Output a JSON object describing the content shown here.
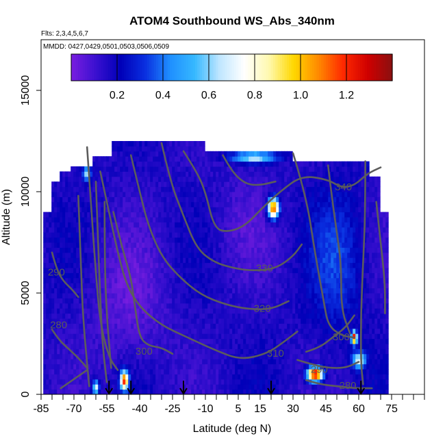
{
  "chart_data": {
    "type": "heatmap",
    "title": "ATOM4 Southbound WS_Abs_340nm",
    "flights_note": "Flts: 2,3,4,5,6,7",
    "dates_note": "MMDD: 0427,0429,0501,0503,0506,0509",
    "xlabel": "Latitude (deg N)",
    "ylabel": "Altitude (m)",
    "xlim": [
      -85,
      90
    ],
    "ylim": [
      0,
      17500
    ],
    "x_ticks": [
      -85,
      -70,
      -55,
      -40,
      -25,
      -10,
      5,
      15,
      30,
      45,
      60,
      75
    ],
    "x_minor_ticks": [
      -80,
      -75,
      -65,
      -60,
      -50,
      -45,
      -35,
      -30,
      -20,
      -15,
      -5,
      0,
      10,
      20,
      25,
      35,
      40,
      50,
      55,
      65,
      70,
      80,
      85,
      90
    ],
    "y_ticks": [
      0,
      5000,
      10000,
      15000
    ],
    "colorbar": {
      "range": [
        0,
        1.4
      ],
      "ticks": [
        0.2,
        0.4,
        0.6,
        0.8,
        1.0,
        1.2
      ],
      "tick_labels": [
        "0.2",
        "0.4",
        "0.6",
        "0.8",
        "1.0",
        "1.2"
      ],
      "colors": [
        "#7a1ee0",
        "#3a10d0",
        "#0000b8",
        "#0a2fe0",
        "#1f8fff",
        "#36b8ff",
        "#bfe6ff",
        "#ffffff",
        "#fff9b0",
        "#ffd800",
        "#ff8a00",
        "#ff2a00",
        "#d00000",
        "#8a1010"
      ]
    },
    "contour_labels": [
      {
        "text": "340",
        "x": 53,
        "y": 10200
      },
      {
        "text": "330",
        "x": 17,
        "y": 6200
      },
      {
        "text": "320",
        "x": 16,
        "y": 4200
      },
      {
        "text": "310",
        "x": 22,
        "y": 2000
      },
      {
        "text": "300",
        "x": -38,
        "y": 2100
      },
      {
        "text": "300",
        "x": 52,
        "y": 2800
      },
      {
        "text": "290",
        "x": -78,
        "y": 6000
      },
      {
        "text": "290",
        "x": 42,
        "y": 1200
      },
      {
        "text": "280",
        "x": -77,
        "y": 3400
      },
      {
        "text": "280",
        "x": 55,
        "y": 400
      }
    ],
    "profile_markers_lat": [
      -54,
      -44,
      -20,
      20,
      61
    ],
    "series": [
      {
        "name": "",
        "lat_range": [
          -84,
          74
        ],
        "alt_top": 12500,
        "median_value": 0.2
      }
    ]
  }
}
